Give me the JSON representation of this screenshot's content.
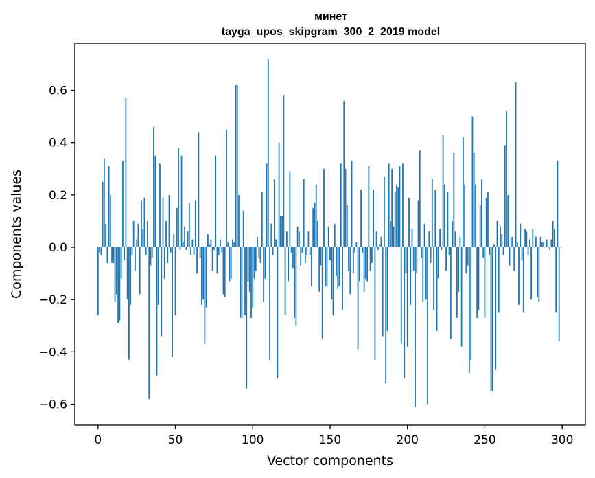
{
  "chart_data": {
    "type": "bar",
    "title": "минет",
    "subtitle": "tayga_upos_skipgram_300_2_2019 model",
    "xlabel": "Vector components",
    "ylabel": "Components values",
    "xlim": [
      -15,
      315
    ],
    "ylim": [
      -0.68,
      0.78
    ],
    "xticks": [
      0,
      50,
      100,
      150,
      200,
      250,
      300
    ],
    "yticks": [
      -0.6,
      -0.4,
      -0.2,
      0.0,
      0.2,
      0.4,
      0.6
    ],
    "xtick_labels": [
      "0",
      "50",
      "100",
      "150",
      "200",
      "250",
      "300"
    ],
    "ytick_labels": [
      "−0.6",
      "−0.4",
      "−0.2",
      "0.0",
      "0.2",
      "0.4",
      "0.6"
    ],
    "bar_color": "#1f77b4",
    "grid": false,
    "x": "indices 0..299",
    "values": [
      -0.26,
      -0.02,
      -0.03,
      0.25,
      0.34,
      0.09,
      -0.06,
      0.31,
      0.2,
      -0.06,
      -0.06,
      -0.21,
      -0.18,
      -0.29,
      -0.28,
      -0.12,
      0.33,
      -0.05,
      0.57,
      -0.2,
      -0.43,
      -0.22,
      -0.03,
      0.1,
      -0.09,
      0.03,
      0.09,
      -0.18,
      0.18,
      0.07,
      0.19,
      -0.03,
      0.1,
      -0.58,
      -0.07,
      -0.04,
      0.46,
      0.35,
      -0.49,
      -0.22,
      0.32,
      -0.34,
      0.19,
      -0.12,
      0.1,
      -0.06,
      0.2,
      -0.02,
      -0.42,
      0.05,
      -0.26,
      0.15,
      0.38,
      -0.01,
      0.35,
      0.02,
      0.08,
      -0.01,
      0.06,
      0.17,
      -0.03,
      0.03,
      -0.03,
      0.18,
      -0.1,
      0.44,
      -0.04,
      -0.22,
      -0.2,
      -0.37,
      -0.23,
      0.05,
      0.01,
      0.03,
      -0.09,
      -0.01,
      0.35,
      -0.1,
      -0.03,
      0.03,
      -0.02,
      -0.18,
      -0.19,
      0.45,
      0.02,
      -0.13,
      -0.12,
      0.03,
      0.02,
      0.62,
      0.62,
      0.2,
      -0.27,
      -0.27,
      0.14,
      -0.26,
      -0.54,
      -0.13,
      -0.17,
      -0.27,
      -0.23,
      -0.12,
      -0.09,
      0.04,
      -0.04,
      -0.06,
      0.21,
      -0.21,
      -0.12,
      0.32,
      0.72,
      -0.43,
      0.09,
      -0.03,
      0.26,
      0.03,
      -0.5,
      0.4,
      0.12,
      0.12,
      0.58,
      -0.26,
      0.06,
      -0.13,
      0.29,
      -0.02,
      -0.08,
      -0.27,
      -0.3,
      0.08,
      0.06,
      -0.07,
      -0.02,
      0.26,
      -0.06,
      -0.03,
      0.06,
      -0.03,
      -0.15,
      0.15,
      0.17,
      0.24,
      0.1,
      -0.17,
      -0.07,
      -0.35,
      0.3,
      -0.15,
      -0.15,
      0.08,
      -0.05,
      -0.2,
      -0.26,
      0.09,
      -0.11,
      -0.16,
      -0.15,
      0.32,
      -0.24,
      0.56,
      0.3,
      0.16,
      -0.09,
      -0.18,
      0.33,
      -0.1,
      -0.02,
      0.02,
      -0.39,
      -0.13,
      0.22,
      -0.02,
      -0.17,
      -0.12,
      -0.13,
      0.31,
      -0.09,
      -0.06,
      0.22,
      -0.43,
      0.06,
      -0.01,
      0.01,
      0.04,
      -0.34,
      0.27,
      -0.52,
      -0.32,
      0.32,
      0.1,
      0.3,
      0.08,
      0.21,
      0.24,
      0.23,
      0.31,
      -0.37,
      0.32,
      -0.5,
      -0.1,
      -0.38,
      0.19,
      -0.22,
      0.07,
      -0.09,
      -0.61,
      -0.1,
      0.18,
      0.37,
      -0.04,
      -0.21,
      0.09,
      -0.2,
      -0.6,
      0.06,
      -0.06,
      0.26,
      -0.24,
      0.22,
      -0.32,
      -0.12,
      0.07,
      -0.01,
      0.43,
      0.24,
      -0.09,
      0.21,
      -0.03,
      -0.35,
      0.1,
      0.36,
      0.06,
      -0.27,
      -0.17,
      0.04,
      -0.38,
      0.42,
      0.24,
      -0.1,
      -0.07,
      -0.48,
      -0.43,
      0.5,
      0.36,
      0.24,
      -0.27,
      -0.24,
      0.16,
      0.26,
      -0.04,
      -0.27,
      0.19,
      0.21,
      -0.03,
      -0.55,
      -0.55,
      0.01,
      -0.47,
      0.1,
      -0.25,
      0.08,
      0.05,
      -0.03,
      0.39,
      0.52,
      0.2,
      -0.07,
      0.04,
      0.04,
      -0.09,
      0.63,
      0.02,
      -0.22,
      0.09,
      -0.05,
      -0.25,
      0.07,
      0.06,
      -0.03,
      0.03,
      -0.2,
      0.07,
      0.0,
      0.04,
      -0.19,
      -0.21,
      0.04,
      0.02,
      0.02,
      0.0,
      0.03,
      0.0,
      -0.01,
      0.03,
      0.1,
      0.07,
      -0.25,
      0.33,
      -0.36,
      0.0
    ]
  }
}
